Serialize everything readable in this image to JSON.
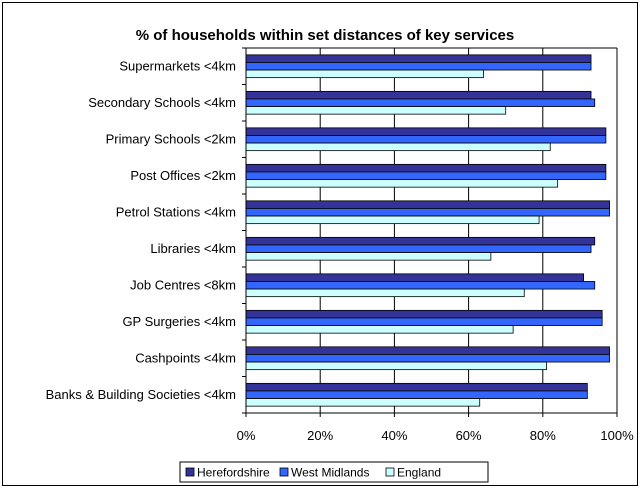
{
  "chart_data": {
    "type": "bar",
    "orientation": "horizontal",
    "title": "% of households within set distances of key services",
    "categories": [
      "Supermarkets <4km",
      "Secondary Schools <4km",
      "Primary Schools <2km",
      "Post Offices <2km",
      "Petrol Stations <4km",
      "Libraries <4km",
      "Job Centres <8km",
      "GP Surgeries <4km",
      "Cashpoints <4km",
      "Banks & Building Societies <4km"
    ],
    "series": [
      {
        "name": "Herefordshire",
        "values": [
          93,
          93,
          97,
          97,
          98,
          94,
          91,
          96,
          98,
          92
        ]
      },
      {
        "name": "West Midlands",
        "values": [
          93,
          94,
          97,
          97,
          98,
          93,
          94,
          96,
          98,
          92
        ]
      },
      {
        "name": "England",
        "values": [
          64,
          70,
          82,
          84,
          79,
          66,
          75,
          72,
          81,
          63
        ]
      }
    ],
    "xlim": [
      0,
      100
    ],
    "xticks": [
      "0%",
      "20%",
      "40%",
      "60%",
      "80%",
      "100%"
    ],
    "grid": true,
    "legend_position": "bottom",
    "colors": {
      "Herefordshire": "#333399",
      "West Midlands": "#3366ff",
      "England": "#ccffff"
    }
  }
}
